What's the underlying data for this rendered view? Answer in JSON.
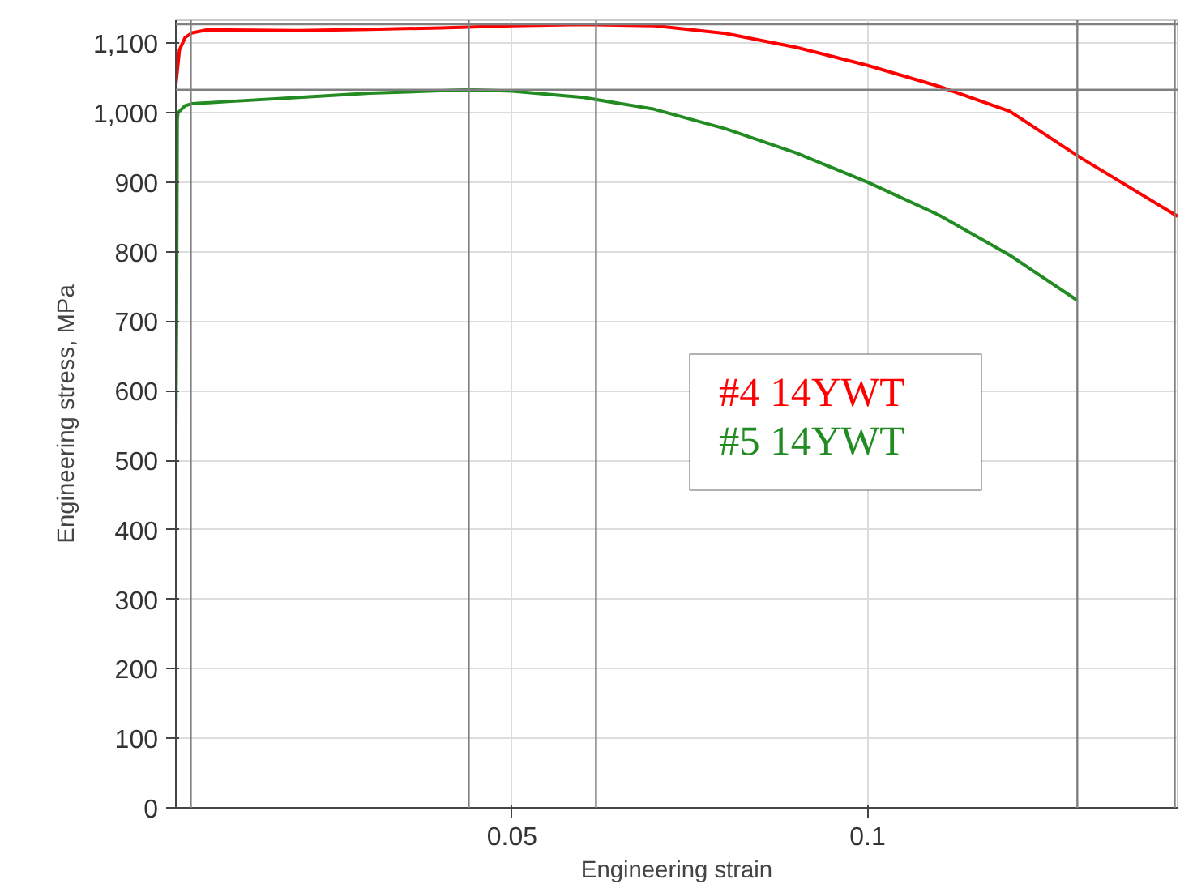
{
  "chart_data": {
    "type": "line",
    "xlabel": "Engineering strain",
    "ylabel": "Engineering stress, MPa",
    "xlim": [
      0.0027,
      0.1436
    ],
    "ylim": [
      0,
      1133
    ],
    "xticks": [
      0.05,
      0.1
    ],
    "yticks": [
      0,
      100,
      200,
      300,
      400,
      500,
      600,
      700,
      800,
      900,
      {
        "value": 1000,
        "label": "1,000"
      },
      {
        "value": 1100,
        "label": "1,100"
      }
    ],
    "grid": true,
    "legend": "right",
    "marker": "none",
    "line_style": "solid",
    "series": [
      {
        "name": "#4 14YWT",
        "color": "#ff0000",
        "x": [
          0.0027,
          0.0032,
          0.004,
          0.005,
          0.007,
          0.01,
          0.02,
          0.03,
          0.04,
          0.05,
          0.06,
          0.07,
          0.08,
          0.09,
          0.1,
          0.11,
          0.12,
          0.13,
          0.1436
        ],
        "values": [
          1040,
          1090,
          1108,
          1115,
          1119,
          1119,
          1118,
          1120,
          1122,
          1125,
          1127,
          1125,
          1114,
          1094,
          1068,
          1038,
          1002,
          935,
          851
        ]
      },
      {
        "name": "#5 14YWT",
        "color": "#228b22",
        "x": [
          0.0027,
          0.0028,
          0.0029,
          0.003,
          0.004,
          0.005,
          0.01,
          0.02,
          0.03,
          0.0439,
          0.05,
          0.06,
          0.07,
          0.08,
          0.09,
          0.1,
          0.11,
          0.12,
          0.1295
        ],
        "values": [
          540,
          700,
          990,
          1000,
          1010,
          1013,
          1016,
          1022,
          1028,
          1033,
          1031,
          1022,
          1005,
          977,
          942,
          900,
          853,
          795,
          730
        ]
      }
    ],
    "ref_lines": [
      {
        "axis": "x",
        "value": 0.0048,
        "color": "#808080"
      },
      {
        "axis": "x",
        "value": 0.0439,
        "color": "#808080"
      },
      {
        "axis": "x",
        "value": 0.0618,
        "color": "#808080"
      },
      {
        "axis": "x",
        "value": 0.1295,
        "color": "#808080"
      },
      {
        "axis": "x",
        "value": 0.1432,
        "color": "#808080"
      },
      {
        "axis": "y",
        "value": 1033,
        "color": "#808080"
      },
      {
        "axis": "y",
        "value": 1127,
        "color": "#808080"
      }
    ]
  }
}
